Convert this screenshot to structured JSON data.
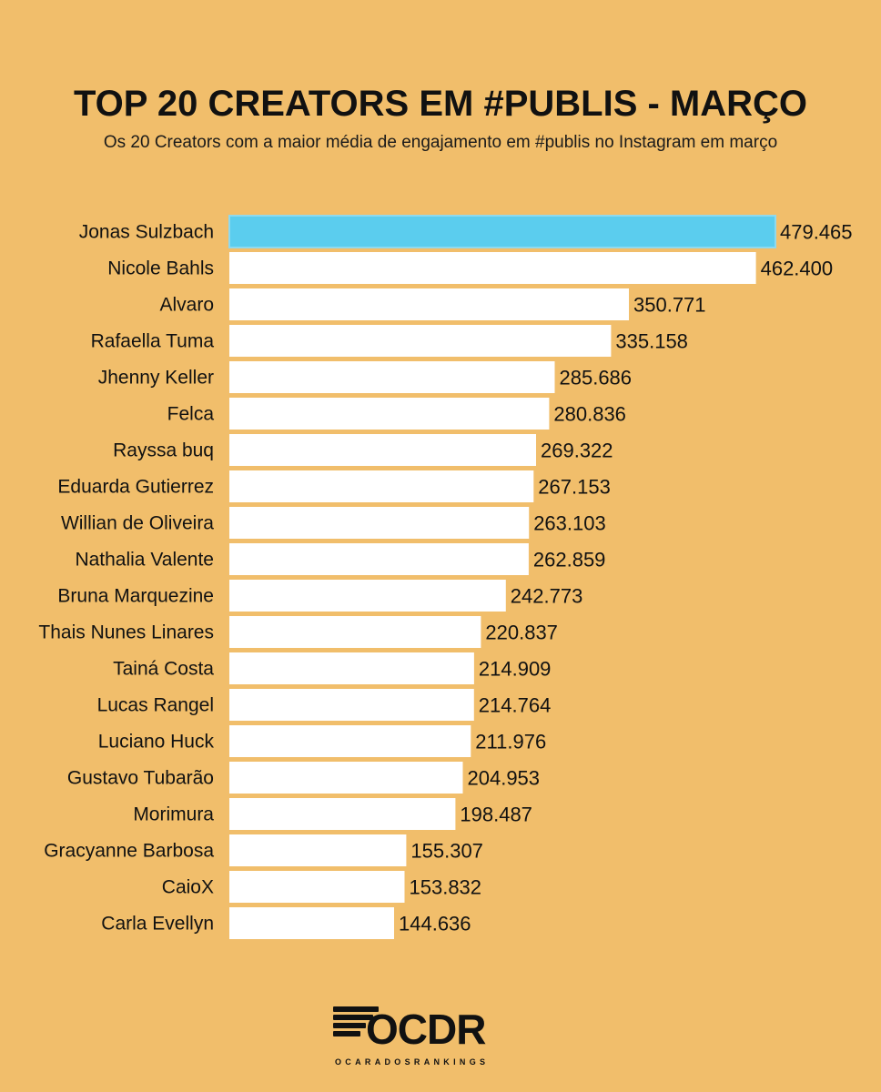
{
  "header": {
    "title": "TOP 20 CREATORS EM #PUBLIS - MARÇO",
    "subtitle": "Os 20 Creators com a maior média de engajamento em #publis no Instagram em março"
  },
  "colors": {
    "background": "#F1BE6B",
    "highlight_bar": "#5BCDEE",
    "bar": "#FFFFFF",
    "text": "#111111"
  },
  "chart_data": {
    "type": "bar",
    "orientation": "horizontal",
    "title": "TOP 20 CREATORS EM #PUBLIS - MARÇO",
    "subtitle": "Os 20 Creators com a maior média de engajamento em #publis no Instagram em março",
    "grid": false,
    "highlight_index": 0,
    "categories": [
      "Jonas Sulzbach",
      "Nicole Bahls",
      "Alvaro",
      "Rafaella Tuma",
      "Jhenny Keller",
      "Felca",
      "Rayssa buq",
      "Eduarda Gutierrez",
      "Willian de Oliveira",
      "Nathalia Valente",
      "Bruna Marquezine",
      "Thais Nunes Linares",
      "Tainá Costa",
      "Lucas Rangel",
      "Luciano Huck",
      "Gustavo Tubarão",
      "Morimura",
      "Gracyanne Barbosa",
      "CaioX",
      "Carla Evellyn"
    ],
    "values": [
      479465,
      462400,
      350771,
      335158,
      285686,
      280836,
      269322,
      267153,
      263103,
      262859,
      242773,
      220837,
      214909,
      214764,
      211976,
      204953,
      198487,
      155307,
      153832,
      144636
    ],
    "value_labels": [
      "479.465",
      "462.400",
      "350.771",
      "335.158",
      "285.686",
      "280.836",
      "269.322",
      "267.153",
      "263.103",
      "262.859",
      "242.773",
      "220.837",
      "214.909",
      "214.764",
      "211.976",
      "204.953",
      "198.487",
      "155.307",
      "153.832",
      "144.636"
    ],
    "xlim": [
      0,
      479465
    ]
  },
  "logo": {
    "wordmark": "OCDR",
    "tagline": "OCARADOSRANKINGS"
  }
}
